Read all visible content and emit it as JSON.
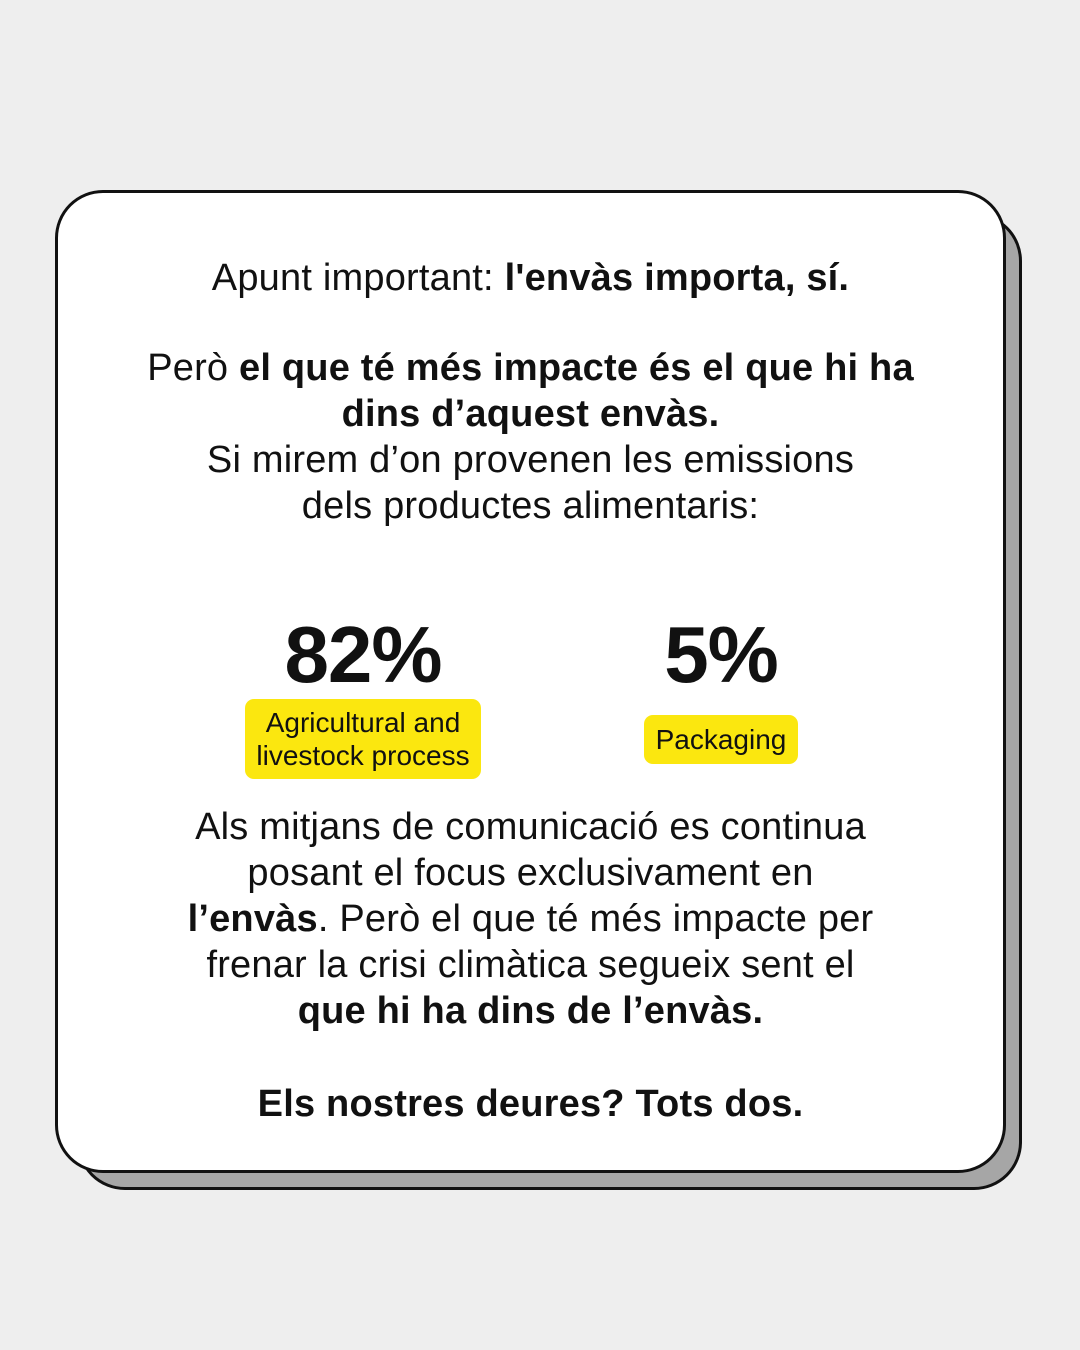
{
  "intro": {
    "lead": "Apunt important: ",
    "bold": "l'envàs importa, sí."
  },
  "second": {
    "lead": "Però ",
    "bold": "el que té més impacte és el que hi ha dins d’aquest envàs.",
    "rest_line1": "Si mirem d’on provenen les emissions",
    "rest_line2": "dels productes alimentaris:"
  },
  "stats": [
    {
      "value": "82%",
      "label_line1": "Agricultural and",
      "label_line2": "livestock process"
    },
    {
      "value": "5%",
      "label": "Packaging"
    }
  ],
  "third": {
    "line1": "Als mitjans de comunicació es continua",
    "line2": "posant el focus exclusivament en",
    "bold1": "l’envàs",
    "line3_rest": ". Però el que té més impacte per",
    "line4": "frenar la crisi climàtica segueix sent el",
    "bold2": "que hi ha dins de l’envàs."
  },
  "closing": "Els nostres deures? Tots dos.",
  "colors": {
    "background": "#eeeeee",
    "card": "#ffffff",
    "shadow": "#a6a6a6",
    "highlight": "#fbe70f",
    "text": "#111111"
  }
}
